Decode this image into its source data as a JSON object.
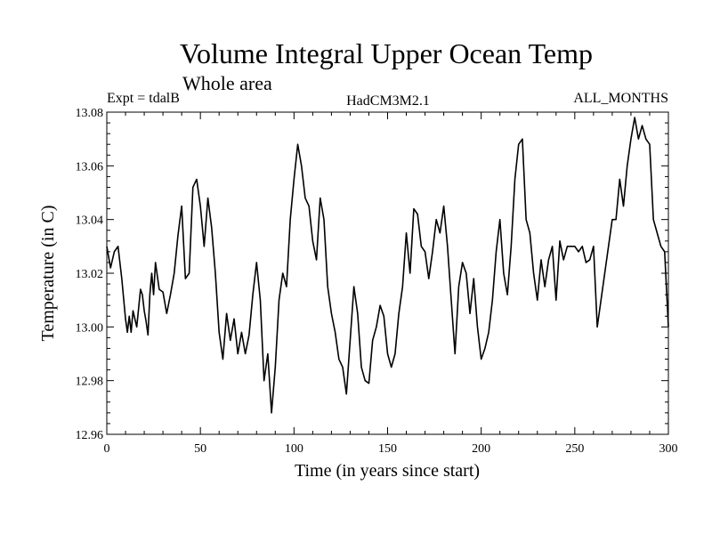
{
  "chart_data": {
    "type": "line",
    "title": "Volume Integral Upper Ocean Temp",
    "subtitle": "Whole area",
    "expt_label": "Expt = tdalB",
    "model_label": "HadCM3M2.1",
    "period_label": "ALL_MONTHS",
    "xlabel": "Time (in years since start)",
    "ylabel": "Temperature (in C)",
    "xlim": [
      0,
      300
    ],
    "ylim": [
      12.96,
      13.08
    ],
    "x_ticks": [
      0,
      50,
      100,
      150,
      200,
      250,
      300
    ],
    "x_tick_labels": [
      "0",
      "50",
      "100",
      "150",
      "200",
      "250",
      "300"
    ],
    "y_ticks": [
      12.96,
      12.98,
      13.0,
      13.02,
      13.04,
      13.06,
      13.08
    ],
    "y_tick_labels": [
      "12.96",
      "12.98",
      "13.00",
      "13.02",
      "13.04",
      "13.06",
      "13.08"
    ],
    "grid": false,
    "series": [
      {
        "name": "Volume integral upper ocean temperature",
        "color": "#000000",
        "x": [
          0,
          2,
          4,
          6,
          8,
          10,
          11,
          12,
          13,
          14,
          16,
          18,
          19,
          20,
          21,
          22,
          23,
          24,
          25,
          26,
          28,
          30,
          32,
          34,
          36,
          38,
          40,
          42,
          44,
          46,
          48,
          50,
          52,
          54,
          56,
          58,
          60,
          62,
          64,
          66,
          68,
          70,
          72,
          74,
          76,
          78,
          80,
          82,
          84,
          86,
          88,
          90,
          92,
          94,
          96,
          98,
          100,
          102,
          104,
          106,
          108,
          110,
          112,
          114,
          116,
          118,
          120,
          122,
          124,
          126,
          128,
          130,
          132,
          134,
          136,
          138,
          140,
          142,
          144,
          146,
          148,
          150,
          152,
          154,
          156,
          158,
          160,
          162,
          164,
          166,
          168,
          170,
          172,
          174,
          176,
          178,
          180,
          182,
          184,
          186,
          188,
          190,
          192,
          194,
          196,
          198,
          200,
          202,
          204,
          206,
          208,
          210,
          212,
          214,
          216,
          218,
          220,
          222,
          224,
          226,
          228,
          230,
          232,
          234,
          236,
          238,
          240,
          242,
          244,
          246,
          248,
          250,
          252,
          254,
          256,
          258,
          260,
          262,
          264,
          266,
          268,
          270,
          272,
          274,
          276,
          278,
          280,
          282,
          284,
          286,
          288,
          290,
          292,
          294,
          296,
          298,
          300
        ],
        "values": [
          13.03,
          13.022,
          13.028,
          13.03,
          13.018,
          13.003,
          12.998,
          13.004,
          12.998,
          13.006,
          13.0,
          13.014,
          13.012,
          13.006,
          13.002,
          12.997,
          13.012,
          13.02,
          13.012,
          13.024,
          13.014,
          13.013,
          13.005,
          13.012,
          13.02,
          13.034,
          13.045,
          13.018,
          13.02,
          13.052,
          13.055,
          13.045,
          13.03,
          13.048,
          13.037,
          13.02,
          12.998,
          12.988,
          13.005,
          12.995,
          13.003,
          12.99,
          12.998,
          12.99,
          12.997,
          13.012,
          13.024,
          13.01,
          12.98,
          12.99,
          12.968,
          12.985,
          13.01,
          13.02,
          13.015,
          13.04,
          13.055,
          13.068,
          13.06,
          13.048,
          13.045,
          13.032,
          13.025,
          13.048,
          13.04,
          13.015,
          13.005,
          12.998,
          12.988,
          12.985,
          12.975,
          12.995,
          13.015,
          13.005,
          12.985,
          12.98,
          12.979,
          12.995,
          13.0,
          13.008,
          13.004,
          12.99,
          12.985,
          12.99,
          13.005,
          13.015,
          13.035,
          13.02,
          13.044,
          13.042,
          13.03,
          13.028,
          13.018,
          13.028,
          13.04,
          13.035,
          13.045,
          13.03,
          13.01,
          12.99,
          13.015,
          13.024,
          13.02,
          13.005,
          13.018,
          13.0,
          12.988,
          12.992,
          12.998,
          13.01,
          13.028,
          13.04,
          13.02,
          13.012,
          13.03,
          13.055,
          13.068,
          13.07,
          13.04,
          13.035,
          13.02,
          13.01,
          13.025,
          13.015,
          13.025,
          13.03,
          13.01,
          13.032,
          13.025,
          13.03,
          13.03,
          13.03,
          13.028,
          13.03,
          13.024,
          13.025,
          13.03,
          13.0,
          13.01,
          13.02,
          13.03,
          13.04,
          13.04,
          13.055,
          13.045,
          13.06,
          13.07,
          13.078,
          13.07,
          13.075,
          13.07,
          13.068,
          13.04,
          13.035,
          13.03,
          13.028,
          13.0
        ]
      }
    ]
  }
}
